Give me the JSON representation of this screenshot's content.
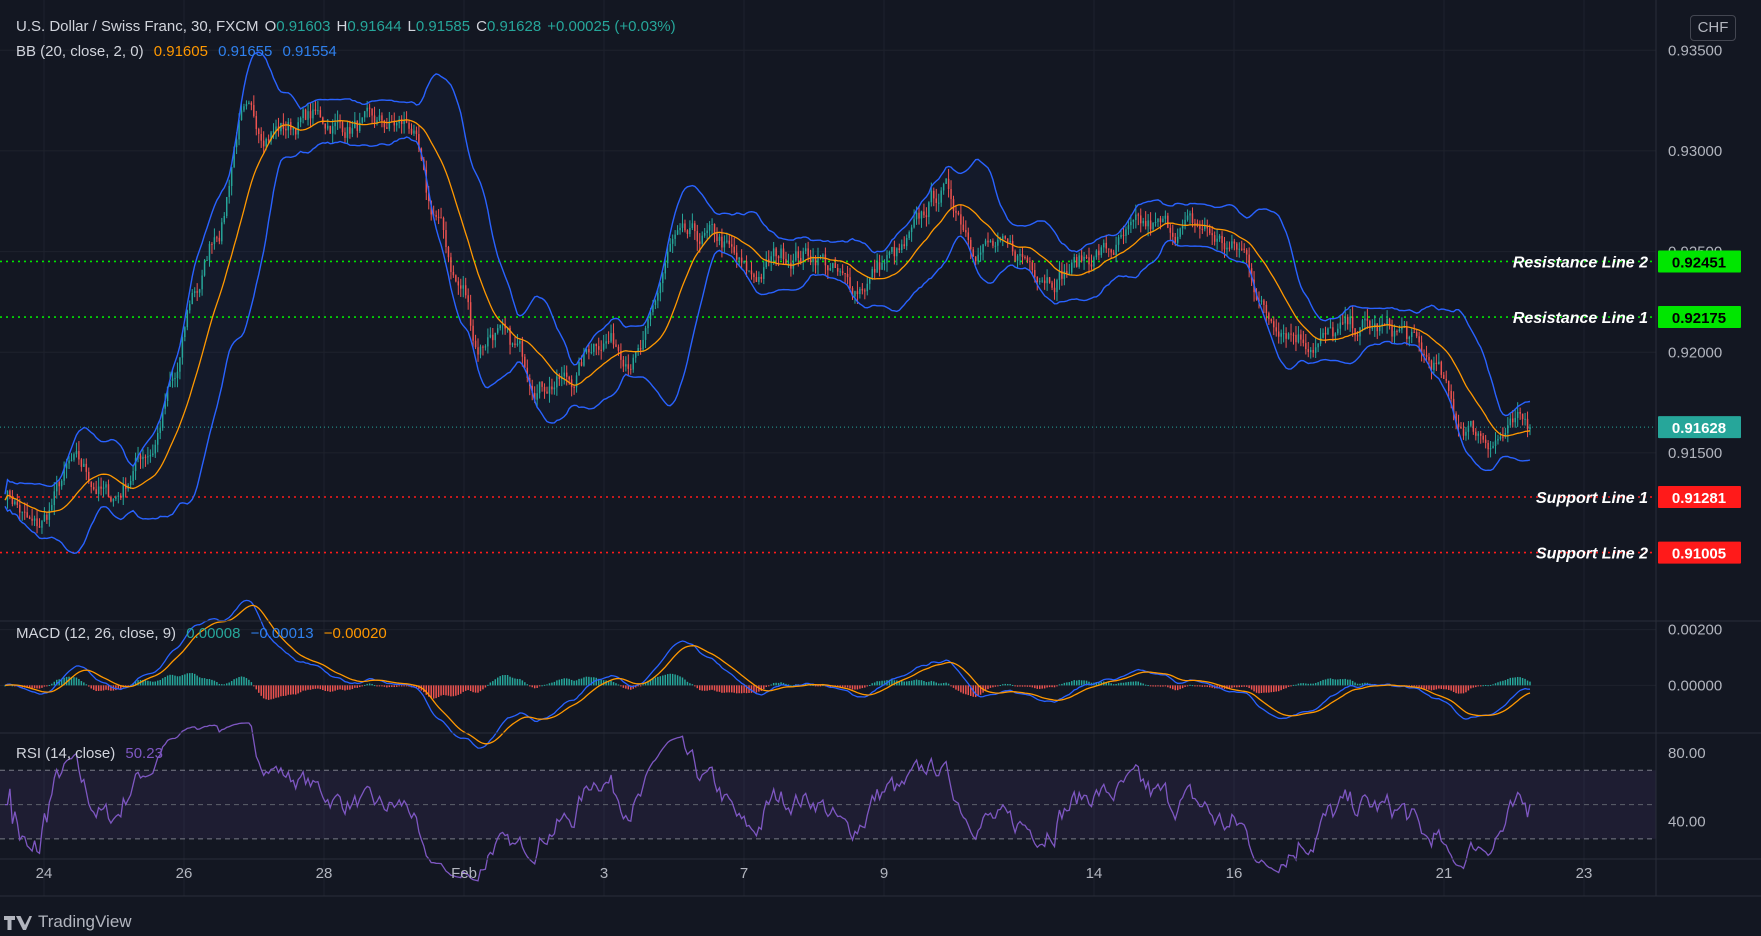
{
  "header": {
    "symbol": "U.S. Dollar / Swiss Franc, 30, FXCM",
    "open_label": "O",
    "open": "0.91603",
    "high_label": "H",
    "high": "0.91644",
    "low_label": "L",
    "low": "0.91585",
    "close_label": "C",
    "close": "0.91628",
    "change": "+0.00025 (+0.03%)"
  },
  "bb_legend": {
    "label": "BB (20, close, 2, 0)",
    "basis": "0.91605",
    "upper": "0.91655",
    "lower": "0.91554"
  },
  "macd_legend": {
    "label": "MACD (12, 26, close, 9)",
    "histogram": "0.00008",
    "macd": "−0.00013",
    "signal": "−0.00020"
  },
  "rsi_legend": {
    "label": "RSI (14, close)",
    "value": "50.23"
  },
  "currency": "CHF",
  "brand": "TradingView",
  "colors": {
    "background": "#131722",
    "grid": "#1e222d",
    "up": "#26a69a",
    "down": "#ef5350",
    "bb_band": "#2962ff",
    "bb_basis": "#ff9800",
    "macd": "#2962ff",
    "signal": "#ff9800",
    "rsi": "#7e57c2",
    "resistance": "#00e600",
    "support": "#ff1a1a",
    "last_price": "#26a69a"
  },
  "chart_data": [
    {
      "type": "candlestick",
      "title": "U.S. Dollar / Swiss Franc, 30, FXCM",
      "x_ticks": [
        "24",
        "26",
        "28",
        "Feb",
        "3",
        "7",
        "9",
        "14",
        "16",
        "21",
        "23"
      ],
      "y_ticks": [
        "0.93500",
        "0.93000",
        "0.92500",
        "0.92000",
        "0.91500"
      ],
      "ylim": [
        0.9068,
        0.9371
      ],
      "last_price": {
        "value": 0.91628,
        "label": "0.91628"
      },
      "horizontal_lines": [
        {
          "name": "Resistance Line 2",
          "value": 0.92451,
          "label": "0.92451",
          "kind": "resistance"
        },
        {
          "name": "Resistance Line 1",
          "value": 0.92175,
          "label": "0.92175",
          "kind": "resistance"
        },
        {
          "name": "Support Line 1",
          "value": 0.91281,
          "label": "0.91281",
          "kind": "support"
        },
        {
          "name": "Support Line 2",
          "value": 0.91005,
          "label": "0.91005",
          "kind": "support"
        }
      ],
      "close_path": {
        "t": [
          0,
          0.02,
          0.045,
          0.07,
          0.095,
          0.11,
          0.125,
          0.14,
          0.155,
          0.17,
          0.185,
          0.2,
          0.225,
          0.25,
          0.265,
          0.28,
          0.3,
          0.31,
          0.32,
          0.335,
          0.35,
          0.37,
          0.39,
          0.415,
          0.44,
          0.465,
          0.49,
          0.51,
          0.53,
          0.555,
          0.585,
          0.615,
          0.64,
          0.66,
          0.69,
          0.72,
          0.75,
          0.78,
          0.81,
          0.83,
          0.86,
          0.89,
          0.915,
          0.935,
          0.955,
          0.975,
          1.0
        ],
        "price": [
          0.9131,
          0.9112,
          0.9143,
          0.9128,
          0.9152,
          0.9183,
          0.9231,
          0.9262,
          0.9316,
          0.9311,
          0.9312,
          0.9317,
          0.9312,
          0.9312,
          0.9313,
          0.9269,
          0.9231,
          0.9203,
          0.9211,
          0.92,
          0.9186,
          0.9186,
          0.9208,
          0.9199,
          0.9254,
          0.9256,
          0.9237,
          0.9249,
          0.9249,
          0.9232,
          0.9248,
          0.928,
          0.9254,
          0.9248,
          0.924,
          0.925,
          0.9261,
          0.9262,
          0.925,
          0.9217,
          0.9206,
          0.9212,
          0.921,
          0.9195,
          0.9164,
          0.9158,
          0.9163
        ]
      },
      "bollinger_bands": {
        "period": 20,
        "stddev": 2,
        "basis": 0.91605,
        "upper": 0.91655,
        "lower": 0.91554
      }
    },
    {
      "type": "line",
      "title": "MACD (12, 26, close, 9)",
      "y_ticks": [
        "0.00200",
        "0.00000"
      ],
      "ylim": [
        -0.0016,
        0.0022
      ],
      "series": [
        {
          "name": "MACD",
          "last": -0.00013
        },
        {
          "name": "Signal",
          "last": -0.0002
        },
        {
          "name": "Histogram",
          "last": 8e-05
        }
      ]
    },
    {
      "type": "line",
      "title": "RSI (14, close)",
      "y_ticks": [
        "80.00",
        "40.00"
      ],
      "ylim": [
        20,
        90
      ],
      "bands": [
        70,
        30
      ],
      "series": [
        {
          "name": "RSI",
          "last": 50.23
        }
      ]
    }
  ]
}
